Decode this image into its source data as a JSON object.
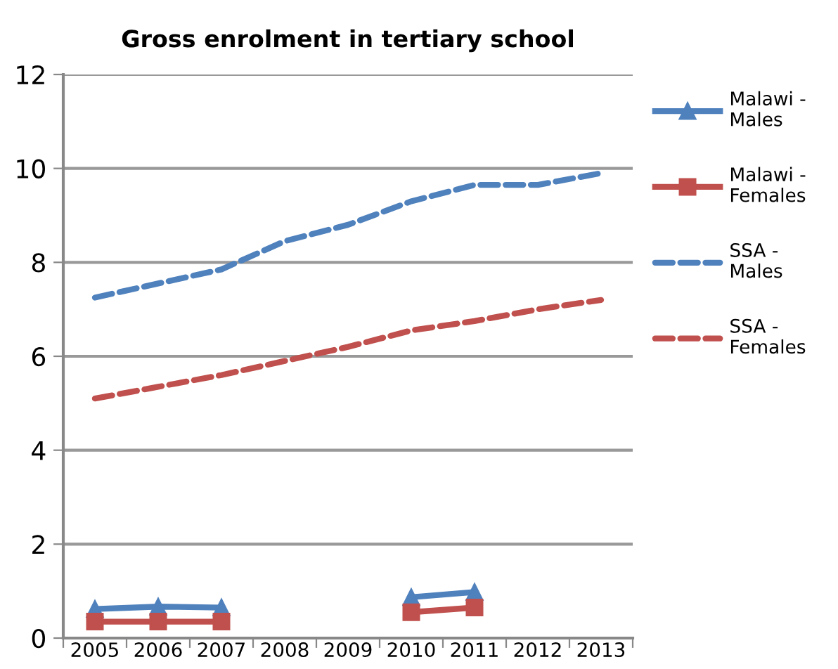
{
  "chart_data": {
    "type": "line",
    "title": "Gross enrolment in tertiary school",
    "categories": [
      "2005",
      "2006",
      "2007",
      "2008",
      "2009",
      "2010",
      "2011",
      "2012",
      "2013"
    ],
    "series": [
      {
        "name": "Malawi - Males",
        "color": "#4f81bd",
        "marker": "triangle",
        "line_style": "solid",
        "values": [
          0.62,
          0.67,
          0.65,
          null,
          null,
          0.87,
          0.98,
          null,
          null
        ]
      },
      {
        "name": "Malawi - Females",
        "color": "#c0504d",
        "marker": "square",
        "line_style": "solid",
        "values": [
          0.35,
          0.35,
          0.35,
          null,
          null,
          0.55,
          0.65,
          null,
          null
        ]
      },
      {
        "name": "SSA - Males",
        "color": "#4f81bd",
        "marker": "none",
        "line_style": "dashed",
        "values": [
          7.25,
          7.55,
          7.85,
          8.45,
          8.8,
          9.3,
          9.65,
          9.65,
          9.9
        ]
      },
      {
        "name": "SSA - Females",
        "color": "#c0504d",
        "marker": "none",
        "line_style": "dashed",
        "values": [
          5.1,
          5.35,
          5.6,
          5.9,
          6.2,
          6.55,
          6.75,
          7.0,
          7.2
        ]
      }
    ],
    "ylim": [
      0,
      12
    ],
    "yticks": [
      0,
      2,
      4,
      6,
      8,
      10,
      12
    ],
    "grid": "y",
    "legend": "right"
  }
}
